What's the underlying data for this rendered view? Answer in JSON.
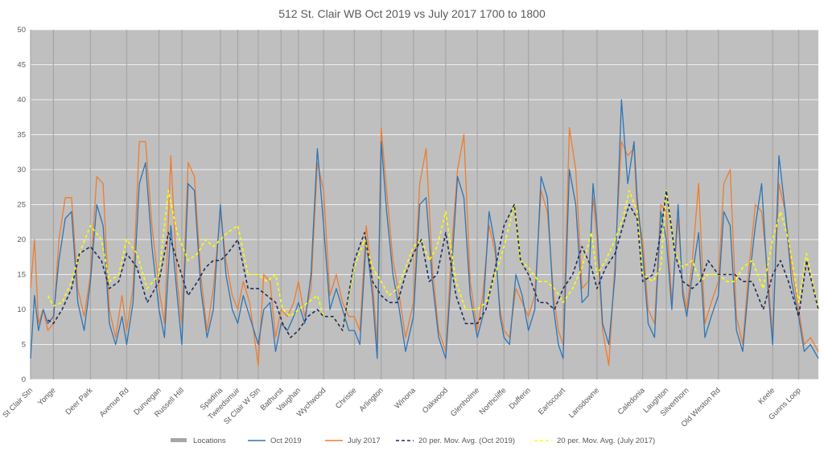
{
  "chart_data": {
    "type": "line",
    "title": "512 St. Clair WB Oct 2019 vs July 2017 1700 to 1800",
    "ylim": [
      0,
      50
    ],
    "yticks": [
      0,
      5,
      10,
      15,
      20,
      25,
      30,
      35,
      40,
      45,
      50
    ],
    "grid": true,
    "legend_position": "bottom",
    "colors": {
      "plot_bg": "#bfbfbf",
      "grid": "#ffffff",
      "locations": "#a6a6a6",
      "oct2019": "#2e75b6",
      "july2017": "#ed7d31",
      "ma_oct2019": "#1f2d5a",
      "ma_july2017": "#ffff00"
    },
    "locations": [
      "St Clair Stn",
      "Yonge",
      "Deer Park",
      "Avenue Rd",
      "Dunvegan",
      "Russell Hill",
      "Spadina",
      "Tweedsmuir",
      "St Clair W Stn",
      "Bathurst",
      "Vaughan",
      "Wychwood",
      "Christie",
      "Arlington",
      "Winona",
      "Oakwood",
      "Glenholme",
      "Northcliffe",
      "Dufferin",
      "Earlscourt",
      "Lansdowne",
      "Caledonia",
      "Laughton",
      "Silverthorn",
      "Old Weston Rd",
      "Keele",
      "Gunns Loop"
    ],
    "location_x": [
      0,
      29,
      76,
      122,
      163,
      192,
      241,
      263,
      289,
      318,
      340,
      372,
      411,
      445,
      486,
      527,
      567,
      601,
      632,
      676,
      719,
      777,
      807,
      833,
      873,
      942,
      975
    ],
    "x_max": 1000,
    "series": [
      {
        "name": "Oct 2019",
        "style": "solid",
        "x": [
          0,
          5,
          10,
          16,
          22,
          29,
          36,
          44,
          52,
          60,
          68,
          76,
          84,
          92,
          100,
          108,
          116,
          122,
          130,
          138,
          146,
          154,
          163,
          170,
          178,
          186,
          192,
          200,
          208,
          216,
          224,
          232,
          241,
          248,
          256,
          263,
          270,
          278,
          289,
          296,
          304,
          311,
          318,
          326,
          334,
          340,
          348,
          356,
          364,
          372,
          380,
          388,
          396,
          404,
          411,
          418,
          426,
          434,
          440,
          445,
          452,
          460,
          468,
          476,
          486,
          494,
          502,
          510,
          518,
          527,
          534,
          542,
          550,
          558,
          567,
          574,
          582,
          590,
          596,
          601,
          608,
          616,
          624,
          632,
          640,
          648,
          656,
          664,
          670,
          676,
          684,
          692,
          700,
          708,
          714,
          719,
          726,
          734,
          742,
          750,
          758,
          766,
          770,
          777,
          784,
          792,
          800,
          807,
          814,
          822,
          828,
          833,
          840,
          848,
          856,
          864,
          873,
          880,
          888,
          896,
          904,
          912,
          920,
          928,
          936,
          942,
          950,
          958,
          966,
          975,
          982,
          990,
          1000
        ],
        "y": [
          3,
          12,
          7,
          10,
          8,
          9,
          17,
          23,
          24,
          11,
          7,
          14,
          25,
          22,
          8,
          5,
          9,
          5,
          11,
          28,
          31,
          19,
          10,
          6,
          22,
          12,
          5,
          28,
          27,
          13,
          6,
          10,
          25,
          15,
          10,
          8,
          12,
          9,
          5,
          10,
          11,
          4,
          8,
          7,
          9,
          11,
          8,
          15,
          33,
          22,
          10,
          13,
          10,
          7,
          7,
          5,
          20,
          12,
          3,
          34,
          24,
          15,
          10,
          4,
          9,
          25,
          26,
          14,
          6,
          3,
          15,
          29,
          26,
          12,
          6,
          9,
          24,
          19,
          9,
          6,
          5,
          15,
          12,
          7,
          10,
          29,
          26,
          10,
          5,
          3,
          30,
          25,
          11,
          12,
          28,
          22,
          8,
          5,
          15,
          40,
          28,
          34,
          26,
          18,
          8,
          6,
          24,
          20,
          10,
          25,
          12,
          9,
          15,
          21,
          6,
          9,
          12,
          24,
          22,
          7,
          4,
          14,
          22,
          28,
          13,
          5,
          32,
          24,
          14,
          9,
          4,
          5,
          3
        ]
      },
      {
        "name": "July 2017",
        "style": "solid",
        "x": [
          0,
          5,
          10,
          16,
          22,
          29,
          36,
          44,
          52,
          60,
          68,
          76,
          84,
          92,
          100,
          108,
          116,
          122,
          130,
          138,
          146,
          154,
          163,
          170,
          178,
          186,
          192,
          200,
          208,
          216,
          224,
          232,
          241,
          248,
          256,
          263,
          270,
          278,
          289,
          296,
          304,
          311,
          318,
          326,
          334,
          340,
          348,
          356,
          364,
          372,
          380,
          388,
          396,
          404,
          411,
          418,
          426,
          434,
          440,
          445,
          452,
          460,
          468,
          476,
          486,
          494,
          502,
          510,
          518,
          527,
          534,
          542,
          550,
          558,
          567,
          574,
          582,
          590,
          596,
          601,
          608,
          616,
          624,
          632,
          640,
          648,
          656,
          664,
          670,
          676,
          684,
          692,
          700,
          708,
          714,
          719,
          726,
          734,
          742,
          750,
          758,
          766,
          770,
          777,
          784,
          792,
          800,
          807,
          814,
          822,
          828,
          833,
          840,
          848,
          856,
          864,
          873,
          880,
          888,
          896,
          904,
          912,
          920,
          928,
          936,
          942,
          950,
          958,
          966,
          975,
          982,
          990,
          1000
        ],
        "y": [
          13,
          20,
          8,
          10,
          7,
          8,
          20,
          26,
          26,
          13,
          9,
          15,
          29,
          28,
          10,
          6,
          12,
          7,
          13,
          34,
          34,
          22,
          13,
          8,
          32,
          14,
          8,
          31,
          29,
          15,
          7,
          13,
          24,
          17,
          12,
          10,
          14,
          11,
          2,
          15,
          14,
          6,
          10,
          9,
          11,
          14,
          9,
          13,
          31,
          27,
          12,
          15,
          11,
          9,
          9,
          7,
          22,
          14,
          5,
          36,
          27,
          17,
          12,
          6,
          11,
          28,
          33,
          16,
          7,
          4,
          18,
          30,
          35,
          14,
          7,
          12,
          22,
          18,
          10,
          7,
          6,
          13,
          11,
          9,
          12,
          27,
          24,
          12,
          7,
          5,
          36,
          30,
          13,
          14,
          26,
          20,
          7,
          2,
          17,
          34,
          32,
          33,
          24,
          20,
          10,
          8,
          25,
          24,
          11,
          23,
          13,
          10,
          17,
          28,
          8,
          11,
          14,
          28,
          30,
          9,
          5,
          16,
          25,
          24,
          15,
          6,
          28,
          24,
          16,
          10,
          5,
          6,
          4
        ]
      },
      {
        "name": "20 per. Mov. Avg. (Oct 2019)",
        "style": "dashed",
        "x": [
          22,
          29,
          40,
          52,
          62,
          76,
          90,
          100,
          112,
          122,
          135,
          148,
          163,
          175,
          186,
          200,
          212,
          222,
          232,
          241,
          250,
          263,
          276,
          289,
          300,
          311,
          320,
          330,
          340,
          352,
          364,
          372,
          384,
          396,
          411,
          424,
          434,
          445,
          455,
          466,
          476,
          486,
          496,
          506,
          516,
          527,
          540,
          552,
          567,
          578,
          590,
          601,
          614,
          622,
          632,
          645,
          655,
          665,
          676,
          688,
          700,
          712,
          719,
          730,
          742,
          752,
          760,
          770,
          777,
          790,
          800,
          807,
          818,
          828,
          840,
          850,
          860,
          873,
          884,
          894,
          904,
          916,
          930,
          942,
          952,
          962,
          975,
          985,
          1000
        ],
        "y": [
          8.5,
          8,
          10,
          13,
          18,
          19,
          17,
          13,
          14,
          18,
          16,
          11,
          14,
          21,
          17,
          12,
          14,
          16,
          17,
          17,
          18,
          20,
          13,
          13,
          12,
          11,
          8,
          6,
          7,
          9,
          10,
          9,
          9,
          7,
          17,
          21,
          14,
          12,
          11,
          11,
          15,
          18,
          20,
          14,
          15,
          21,
          12,
          8,
          8,
          10,
          16,
          22,
          25,
          17,
          15,
          11,
          11,
          10,
          13,
          15,
          19,
          16,
          13,
          16,
          18,
          22,
          25,
          23,
          14,
          15,
          21,
          27,
          18,
          14,
          13,
          14,
          17,
          15,
          15,
          15,
          14,
          14,
          10,
          15,
          17,
          14,
          9,
          17,
          10
        ]
      },
      {
        "name": "20 per. Mov. Avg. (July 2017)",
        "style": "dashed",
        "x": [
          22,
          29,
          40,
          52,
          62,
          76,
          90,
          100,
          112,
          122,
          135,
          148,
          163,
          175,
          186,
          200,
          212,
          222,
          232,
          241,
          250,
          263,
          276,
          289,
          300,
          311,
          320,
          330,
          340,
          352,
          364,
          372,
          384,
          396,
          411,
          424,
          434,
          445,
          455,
          466,
          476,
          486,
          496,
          506,
          516,
          527,
          540,
          552,
          567,
          578,
          590,
          601,
          614,
          622,
          632,
          645,
          655,
          665,
          676,
          688,
          700,
          712,
          719,
          730,
          742,
          752,
          760,
          770,
          777,
          790,
          800,
          807,
          818,
          828,
          840,
          850,
          860,
          873,
          884,
          894,
          904,
          916,
          930,
          942,
          952,
          962,
          975,
          985,
          1000
        ],
        "y": [
          12,
          10.5,
          11,
          14,
          18,
          22,
          20,
          14,
          15,
          20,
          18,
          13,
          15,
          27,
          21,
          17,
          18,
          20,
          19,
          20,
          21,
          22,
          15,
          15,
          14,
          15,
          10,
          9,
          10,
          11,
          12,
          9,
          9,
          7,
          16,
          20,
          16,
          14,
          12,
          13,
          16,
          19,
          20,
          17,
          19,
          24,
          14,
          10,
          10,
          11,
          15,
          19,
          25,
          17,
          16,
          14,
          14,
          13,
          11,
          13,
          16,
          21,
          15,
          17,
          20,
          23,
          27,
          24,
          15,
          14,
          16,
          27,
          18,
          16,
          17,
          14,
          15,
          15,
          14,
          14,
          16,
          17,
          13,
          20,
          24,
          20,
          11,
          18,
          10
        ]
      }
    ],
    "legend": [
      {
        "label": "Locations",
        "kind": "bar",
        "color": "#a6a6a6"
      },
      {
        "label": "Oct 2019",
        "kind": "line",
        "color": "#2e75b6"
      },
      {
        "label": "July 2017",
        "kind": "line",
        "color": "#ed7d31"
      },
      {
        "label": "20 per. Mov. Avg. (Oct 2019)",
        "kind": "dashed",
        "color": "#1f2d5a"
      },
      {
        "label": "20 per. Mov. Avg. (July 2017)",
        "kind": "dashed",
        "color": "#ffff00"
      }
    ]
  }
}
